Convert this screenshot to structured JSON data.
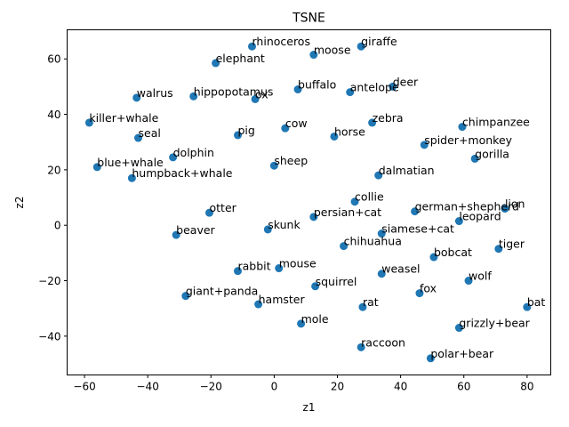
{
  "chart_data": {
    "type": "scatter",
    "title": "TSNE",
    "xlabel": "z1",
    "ylabel": "z2",
    "xlim": [
      -65.5,
      87.5
    ],
    "ylim": [
      -54,
      70.5
    ],
    "xticks": [
      -60,
      -40,
      -20,
      0,
      20,
      40,
      60,
      80
    ],
    "yticks": [
      -40,
      -20,
      0,
      20,
      40,
      60
    ],
    "grid": false,
    "marker_color": "#1f77b4",
    "points": [
      {
        "label": "rhinoceros",
        "x": -7,
        "y": 64.5
      },
      {
        "label": "giraffe",
        "x": 27.5,
        "y": 64.5
      },
      {
        "label": "moose",
        "x": 12.5,
        "y": 61.5
      },
      {
        "label": "elephant",
        "x": -18.5,
        "y": 58.5
      },
      {
        "label": "deer",
        "x": 37.5,
        "y": 50
      },
      {
        "label": "buffalo",
        "x": 7.5,
        "y": 49
      },
      {
        "label": "antelope",
        "x": 24,
        "y": 48
      },
      {
        "label": "walrus",
        "x": -43.5,
        "y": 46
      },
      {
        "label": "hippopotamus",
        "x": -25.5,
        "y": 46.5
      },
      {
        "label": "ox",
        "x": -6,
        "y": 45.5
      },
      {
        "label": "killer+whale",
        "x": -58.5,
        "y": 37
      },
      {
        "label": "zebra",
        "x": 31,
        "y": 37
      },
      {
        "label": "chimpanzee",
        "x": 59.5,
        "y": 35.5
      },
      {
        "label": "cow",
        "x": 3.5,
        "y": 35
      },
      {
        "label": "pig",
        "x": -11.5,
        "y": 32.5
      },
      {
        "label": "seal",
        "x": -43,
        "y": 31.5
      },
      {
        "label": "horse",
        "x": 19,
        "y": 32
      },
      {
        "label": "spider+monkey",
        "x": 47.5,
        "y": 29
      },
      {
        "label": "dolphin",
        "x": -32,
        "y": 24.5
      },
      {
        "label": "gorilla",
        "x": 63.5,
        "y": 24
      },
      {
        "label": "blue+whale",
        "x": -56,
        "y": 21
      },
      {
        "label": "sheep",
        "x": 0,
        "y": 21.5
      },
      {
        "label": "humpback+whale",
        "x": -45,
        "y": 17
      },
      {
        "label": "dalmatian",
        "x": 33,
        "y": 18
      },
      {
        "label": "collie",
        "x": 25.5,
        "y": 8.5
      },
      {
        "label": "otter",
        "x": -20.5,
        "y": 4.5
      },
      {
        "label": "persian+cat",
        "x": 12.5,
        "y": 3
      },
      {
        "label": "german+shepherd",
        "x": 44.5,
        "y": 5
      },
      {
        "label": "lion",
        "x": 73,
        "y": 6
      },
      {
        "label": "leopard",
        "x": 58.5,
        "y": 1.5
      },
      {
        "label": "skunk",
        "x": -2,
        "y": -1.5
      },
      {
        "label": "siamese+cat",
        "x": 34,
        "y": -3
      },
      {
        "label": "beaver",
        "x": -31,
        "y": -3.5
      },
      {
        "label": "chihuahua",
        "x": 22,
        "y": -7.5
      },
      {
        "label": "tiger",
        "x": 71,
        "y": -8.5
      },
      {
        "label": "bobcat",
        "x": 50.5,
        "y": -11.5
      },
      {
        "label": "rabbit",
        "x": -11.5,
        "y": -16.5
      },
      {
        "label": "mouse",
        "x": 1.5,
        "y": -15.5
      },
      {
        "label": "weasel",
        "x": 34,
        "y": -17.5
      },
      {
        "label": "wolf",
        "x": 61.5,
        "y": -20
      },
      {
        "label": "squirrel",
        "x": 13,
        "y": -22
      },
      {
        "label": "fox",
        "x": 46,
        "y": -24.5
      },
      {
        "label": "giant+panda",
        "x": -28,
        "y": -25.5
      },
      {
        "label": "hamster",
        "x": -5,
        "y": -28.5
      },
      {
        "label": "rat",
        "x": 28,
        "y": -29.5
      },
      {
        "label": "bat",
        "x": 80,
        "y": -29.5
      },
      {
        "label": "mole",
        "x": 8.5,
        "y": -35.5
      },
      {
        "label": "grizzly+bear",
        "x": 58.5,
        "y": -37
      },
      {
        "label": "raccoon",
        "x": 27.5,
        "y": -44
      },
      {
        "label": "polar+bear",
        "x": 49.5,
        "y": -48
      }
    ]
  }
}
